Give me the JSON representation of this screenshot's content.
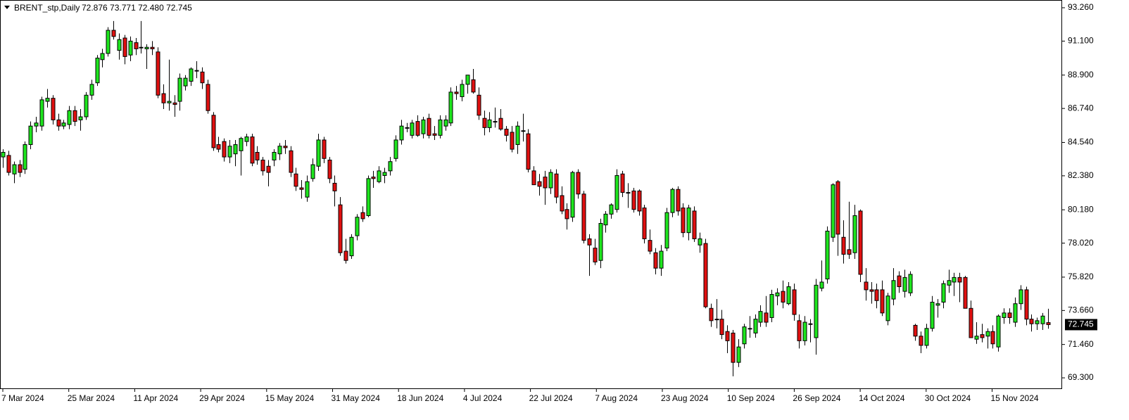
{
  "chart_data": {
    "type": "candlestick",
    "title": "BRENT_stp,Daily",
    "header_prices": "72.876 73.771 72.480 72.745",
    "up_color": "#1ee61e",
    "down_color": "#e01010",
    "ylim": [
      68.62,
      93.67
    ],
    "yticks": [
      {
        "value": 93.26,
        "label": "93.260"
      },
      {
        "value": 91.1,
        "label": "91.100"
      },
      {
        "value": 88.9,
        "label": "88.900"
      },
      {
        "value": 86.74,
        "label": "86.740"
      },
      {
        "value": 84.54,
        "label": "84.540"
      },
      {
        "value": 82.38,
        "label": "82.380"
      },
      {
        "value": 80.18,
        "label": "80.180"
      },
      {
        "value": 78.02,
        "label": "78.020"
      },
      {
        "value": 75.82,
        "label": "75.820"
      },
      {
        "value": 73.66,
        "label": "73.660"
      },
      {
        "value": 71.46,
        "label": "71.460"
      },
      {
        "value": 69.3,
        "label": "69.300"
      }
    ],
    "x_labels": [
      "7 Mar 2024",
      "25 Mar 2024",
      "11 Apr 2024",
      "29 Apr 2024",
      "15 May 2024",
      "31 May 2024",
      "18 Jun 2024",
      "4 Jul 2024",
      "22 Jul 2024",
      "7 Aug 2024",
      "23 Aug 2024",
      "10 Sep 2024",
      "26 Sep 2024",
      "14 Oct 2024",
      "30 Oct 2024",
      "15 Nov 2024"
    ],
    "candles": [
      [
        83.6,
        84.1,
        82.9,
        83.9
      ],
      [
        83.7,
        84.0,
        82.4,
        82.6
      ],
      [
        82.5,
        83.3,
        81.9,
        83.1
      ],
      [
        83.1,
        83.4,
        82.3,
        82.6
      ],
      [
        82.8,
        84.6,
        82.5,
        84.4
      ],
      [
        84.4,
        85.9,
        84.1,
        85.6
      ],
      [
        85.6,
        86.2,
        85.2,
        85.8
      ],
      [
        85.6,
        87.5,
        85.3,
        87.3
      ],
      [
        87.2,
        88.0,
        86.8,
        87.4
      ],
      [
        87.4,
        87.6,
        85.7,
        86.0
      ],
      [
        86.0,
        86.4,
        85.3,
        85.6
      ],
      [
        85.6,
        86.0,
        85.4,
        85.8
      ],
      [
        85.7,
        86.9,
        85.4,
        86.6
      ],
      [
        86.6,
        86.9,
        85.6,
        85.9
      ],
      [
        86.0,
        86.7,
        85.3,
        86.2
      ],
      [
        86.2,
        87.8,
        86.0,
        87.6
      ],
      [
        87.6,
        88.6,
        87.3,
        88.3
      ],
      [
        88.4,
        90.2,
        88.2,
        90.0
      ],
      [
        89.9,
        90.6,
        89.4,
        90.3
      ],
      [
        90.3,
        92.0,
        90.1,
        91.8
      ],
      [
        91.8,
        92.4,
        91.2,
        91.4
      ],
      [
        90.5,
        91.6,
        89.9,
        91.2
      ],
      [
        91.3,
        91.5,
        89.6,
        90.1
      ],
      [
        90.2,
        91.4,
        89.8,
        91.1
      ],
      [
        91.0,
        91.3,
        90.2,
        90.6
      ],
      [
        90.7,
        92.4,
        90.3,
        90.7
      ],
      [
        90.6,
        90.9,
        89.3,
        90.7
      ],
      [
        90.7,
        91.1,
        90.2,
        90.6
      ],
      [
        90.4,
        90.7,
        87.4,
        87.6
      ],
      [
        87.7,
        88.3,
        86.7,
        87.1
      ],
      [
        87.1,
        89.9,
        86.6,
        87.2
      ],
      [
        87.1,
        87.6,
        86.2,
        87.0
      ],
      [
        87.2,
        89.0,
        86.6,
        88.7
      ],
      [
        88.2,
        88.9,
        87.9,
        88.7
      ],
      [
        88.5,
        89.4,
        88.2,
        89.3
      ],
      [
        89.2,
        89.8,
        88.7,
        89.2
      ],
      [
        89.1,
        89.4,
        88.0,
        88.4
      ],
      [
        88.3,
        88.6,
        86.4,
        86.6
      ],
      [
        86.3,
        86.5,
        84.0,
        84.2
      ],
      [
        84.4,
        84.9,
        83.9,
        84.1
      ],
      [
        84.6,
        84.8,
        83.3,
        83.6
      ],
      [
        83.6,
        84.7,
        83.2,
        84.3
      ],
      [
        83.8,
        84.7,
        83.0,
        84.4
      ],
      [
        84.0,
        84.9,
        82.4,
        84.8
      ],
      [
        84.6,
        85.1,
        84.3,
        84.9
      ],
      [
        84.9,
        85.1,
        83.0,
        83.2
      ],
      [
        83.9,
        84.3,
        83.1,
        83.4
      ],
      [
        83.4,
        83.6,
        82.4,
        82.7
      ],
      [
        83.0,
        83.4,
        81.7,
        82.6
      ],
      [
        83.4,
        84.1,
        83.0,
        83.9
      ],
      [
        83.8,
        84.5,
        83.4,
        84.3
      ],
      [
        84.3,
        84.7,
        83.8,
        84.2
      ],
      [
        84.0,
        84.3,
        82.3,
        82.6
      ],
      [
        82.5,
        82.9,
        81.4,
        81.7
      ],
      [
        81.6,
        82.1,
        80.9,
        81.5
      ],
      [
        81.0,
        82.4,
        80.7,
        82.0
      ],
      [
        82.2,
        83.5,
        82.0,
        83.1
      ],
      [
        83.0,
        85.1,
        82.7,
        84.7
      ],
      [
        84.7,
        84.9,
        83.2,
        83.5
      ],
      [
        83.4,
        83.6,
        81.9,
        82.2
      ],
      [
        81.9,
        82.4,
        80.4,
        81.4
      ],
      [
        80.5,
        81.0,
        77.2,
        77.4
      ],
      [
        77.5,
        78.3,
        76.7,
        76.9
      ],
      [
        77.2,
        78.6,
        77.0,
        78.4
      ],
      [
        78.5,
        79.9,
        78.2,
        79.7
      ],
      [
        80.0,
        80.4,
        79.4,
        79.6
      ],
      [
        79.8,
        82.4,
        79.7,
        82.2
      ],
      [
        82.3,
        82.7,
        81.6,
        82.2
      ],
      [
        82.0,
        83.0,
        81.9,
        82.7
      ],
      [
        82.4,
        82.9,
        81.9,
        82.6
      ],
      [
        82.7,
        83.6,
        82.4,
        83.3
      ],
      [
        83.5,
        85.0,
        83.3,
        84.7
      ],
      [
        84.7,
        86.0,
        84.4,
        85.6
      ],
      [
        85.5,
        85.8,
        85.2,
        85.5
      ],
      [
        85.0,
        86.0,
        84.8,
        85.8
      ],
      [
        85.9,
        86.3,
        84.9,
        85.0
      ],
      [
        85.1,
        86.2,
        84.8,
        86.0
      ],
      [
        86.1,
        86.4,
        84.8,
        85.0
      ],
      [
        85.1,
        85.6,
        84.7,
        85.0
      ],
      [
        85.0,
        86.3,
        84.8,
        86.0
      ],
      [
        85.6,
        86.3,
        85.3,
        86.0
      ],
      [
        85.8,
        88.1,
        85.6,
        87.8
      ],
      [
        87.8,
        88.2,
        87.3,
        87.7
      ],
      [
        87.5,
        88.6,
        87.2,
        88.3
      ],
      [
        88.3,
        88.9,
        87.7,
        88.9
      ],
      [
        88.6,
        89.3,
        87.7,
        87.8
      ],
      [
        87.6,
        88.1,
        86.0,
        86.3
      ],
      [
        86.1,
        86.6,
        85.0,
        85.5
      ],
      [
        85.5,
        86.5,
        85.2,
        86.0
      ],
      [
        85.9,
        86.8,
        85.5,
        85.9
      ],
      [
        86.1,
        86.7,
        85.3,
        85.4
      ],
      [
        85.4,
        85.6,
        84.6,
        85.0
      ],
      [
        85.2,
        85.6,
        83.9,
        84.1
      ],
      [
        84.4,
        85.9,
        83.8,
        85.6
      ],
      [
        85.3,
        86.4,
        84.6,
        85.3
      ],
      [
        85.1,
        85.4,
        82.6,
        82.8
      ],
      [
        82.7,
        83.0,
        81.8,
        81.8
      ],
      [
        82.0,
        82.5,
        81.1,
        81.7
      ],
      [
        82.3,
        82.7,
        80.5,
        81.6
      ],
      [
        81.6,
        82.8,
        81.2,
        82.6
      ],
      [
        82.5,
        82.8,
        80.6,
        81.0
      ],
      [
        81.1,
        81.7,
        79.9,
        80.1
      ],
      [
        80.2,
        80.6,
        78.9,
        79.6
      ],
      [
        79.7,
        82.7,
        79.4,
        82.6
      ],
      [
        82.6,
        82.8,
        80.9,
        81.2
      ],
      [
        81.2,
        81.4,
        78.0,
        78.2
      ],
      [
        78.3,
        78.6,
        75.9,
        77.9
      ],
      [
        77.7,
        78.3,
        76.6,
        76.8
      ],
      [
        76.9,
        79.6,
        76.4,
        79.3
      ],
      [
        79.2,
        80.1,
        78.7,
        79.9
      ],
      [
        79.9,
        80.6,
        79.6,
        80.5
      ],
      [
        80.2,
        82.8,
        80.0,
        82.4
      ],
      [
        82.5,
        82.7,
        81.0,
        81.3
      ],
      [
        81.3,
        81.9,
        80.3,
        81.3
      ],
      [
        81.4,
        81.6,
        80.0,
        80.2
      ],
      [
        81.4,
        81.5,
        79.8,
        80.1
      ],
      [
        80.3,
        80.5,
        78.0,
        78.3
      ],
      [
        78.2,
        78.9,
        77.3,
        77.5
      ],
      [
        77.4,
        77.7,
        76.0,
        76.4
      ],
      [
        76.4,
        77.9,
        75.9,
        77.5
      ],
      [
        77.7,
        80.3,
        77.5,
        80.0
      ],
      [
        80.0,
        81.6,
        79.7,
        81.5
      ],
      [
        81.5,
        81.7,
        79.8,
        80.1
      ],
      [
        80.3,
        80.6,
        78.4,
        78.7
      ],
      [
        78.7,
        80.5,
        78.2,
        80.3
      ],
      [
        80.1,
        80.4,
        78.1,
        78.3
      ],
      [
        77.9,
        78.7,
        77.4,
        78.3
      ],
      [
        78.0,
        78.3,
        73.8,
        73.9
      ],
      [
        73.8,
        74.1,
        72.6,
        73.0
      ],
      [
        73.1,
        74.4,
        72.5,
        73.1
      ],
      [
        73.1,
        73.7,
        71.8,
        72.1
      ],
      [
        72.3,
        72.7,
        70.9,
        71.7
      ],
      [
        72.2,
        72.4,
        69.4,
        70.3
      ],
      [
        70.3,
        71.8,
        70.0,
        71.3
      ],
      [
        71.5,
        72.8,
        71.2,
        72.6
      ],
      [
        72.5,
        73.3,
        71.9,
        72.5
      ],
      [
        72.2,
        73.4,
        71.9,
        73.1
      ],
      [
        72.9,
        74.0,
        72.6,
        73.6
      ],
      [
        73.5,
        74.6,
        72.6,
        72.9
      ],
      [
        73.2,
        75.0,
        72.9,
        74.7
      ],
      [
        74.6,
        75.1,
        74.0,
        74.8
      ],
      [
        74.9,
        75.6,
        73.8,
        74.2
      ],
      [
        74.1,
        75.5,
        74.0,
        75.2
      ],
      [
        75.0,
        75.4,
        73.0,
        73.4
      ],
      [
        73.0,
        73.4,
        71.2,
        71.7
      ],
      [
        71.7,
        73.3,
        71.4,
        72.9
      ],
      [
        72.8,
        73.1,
        71.6,
        72.8
      ],
      [
        71.9,
        75.7,
        70.8,
        75.3
      ],
      [
        75.1,
        76.9,
        74.9,
        75.5
      ],
      [
        75.7,
        79.1,
        75.4,
        78.8
      ],
      [
        78.4,
        81.9,
        78.1,
        81.8
      ],
      [
        82.0,
        82.1,
        77.2,
        78.6
      ],
      [
        78.4,
        79.5,
        76.7,
        77.3
      ],
      [
        77.6,
        80.7,
        77.0,
        77.3
      ],
      [
        77.4,
        80.5,
        77.0,
        79.8
      ],
      [
        80.1,
        80.2,
        75.5,
        76.0
      ],
      [
        75.5,
        76.4,
        74.3,
        75.0
      ],
      [
        75.0,
        75.5,
        74.1,
        74.9
      ],
      [
        75.0,
        75.4,
        73.8,
        74.3
      ],
      [
        75.0,
        75.6,
        73.3,
        73.5
      ],
      [
        73.0,
        74.8,
        72.7,
        74.6
      ],
      [
        74.4,
        76.4,
        74.0,
        75.6
      ],
      [
        75.9,
        76.2,
        74.8,
        75.2
      ],
      [
        74.9,
        76.3,
        74.5,
        75.8
      ],
      [
        74.8,
        76.2,
        74.6,
        76.0
      ],
      [
        72.7,
        72.8,
        71.7,
        72.0
      ],
      [
        72.0,
        72.3,
        70.9,
        71.4
      ],
      [
        71.4,
        72.8,
        71.2,
        72.5
      ],
      [
        72.5,
        74.6,
        72.3,
        74.2
      ],
      [
        74.0,
        74.4,
        73.2,
        74.1
      ],
      [
        74.2,
        75.6,
        73.8,
        75.4
      ],
      [
        75.3,
        76.3,
        74.8,
        75.6
      ],
      [
        75.5,
        76.1,
        74.6,
        75.8
      ],
      [
        75.8,
        76.1,
        74.2,
        75.5
      ],
      [
        75.8,
        75.9,
        73.8,
        73.8
      ],
      [
        73.8,
        74.3,
        71.9,
        71.9
      ],
      [
        71.8,
        72.9,
        71.5,
        72.0
      ],
      [
        72.1,
        72.8,
        71.6,
        71.9
      ],
      [
        72.0,
        72.5,
        71.2,
        72.3
      ],
      [
        72.3,
        72.7,
        71.2,
        71.5
      ],
      [
        71.3,
        73.4,
        71.0,
        73.3
      ],
      [
        73.2,
        73.8,
        72.8,
        73.5
      ],
      [
        73.5,
        73.8,
        72.8,
        73.2
      ],
      [
        72.9,
        74.5,
        72.6,
        74.1
      ],
      [
        74.1,
        75.3,
        73.7,
        75.0
      ],
      [
        75.0,
        75.2,
        72.7,
        73.1
      ],
      [
        73.1,
        73.4,
        72.3,
        72.8
      ],
      [
        72.8,
        73.2,
        72.4,
        73.0
      ],
      [
        72.8,
        73.5,
        72.4,
        73.3
      ],
      [
        72.876,
        73.771,
        72.48,
        72.745
      ]
    ]
  }
}
